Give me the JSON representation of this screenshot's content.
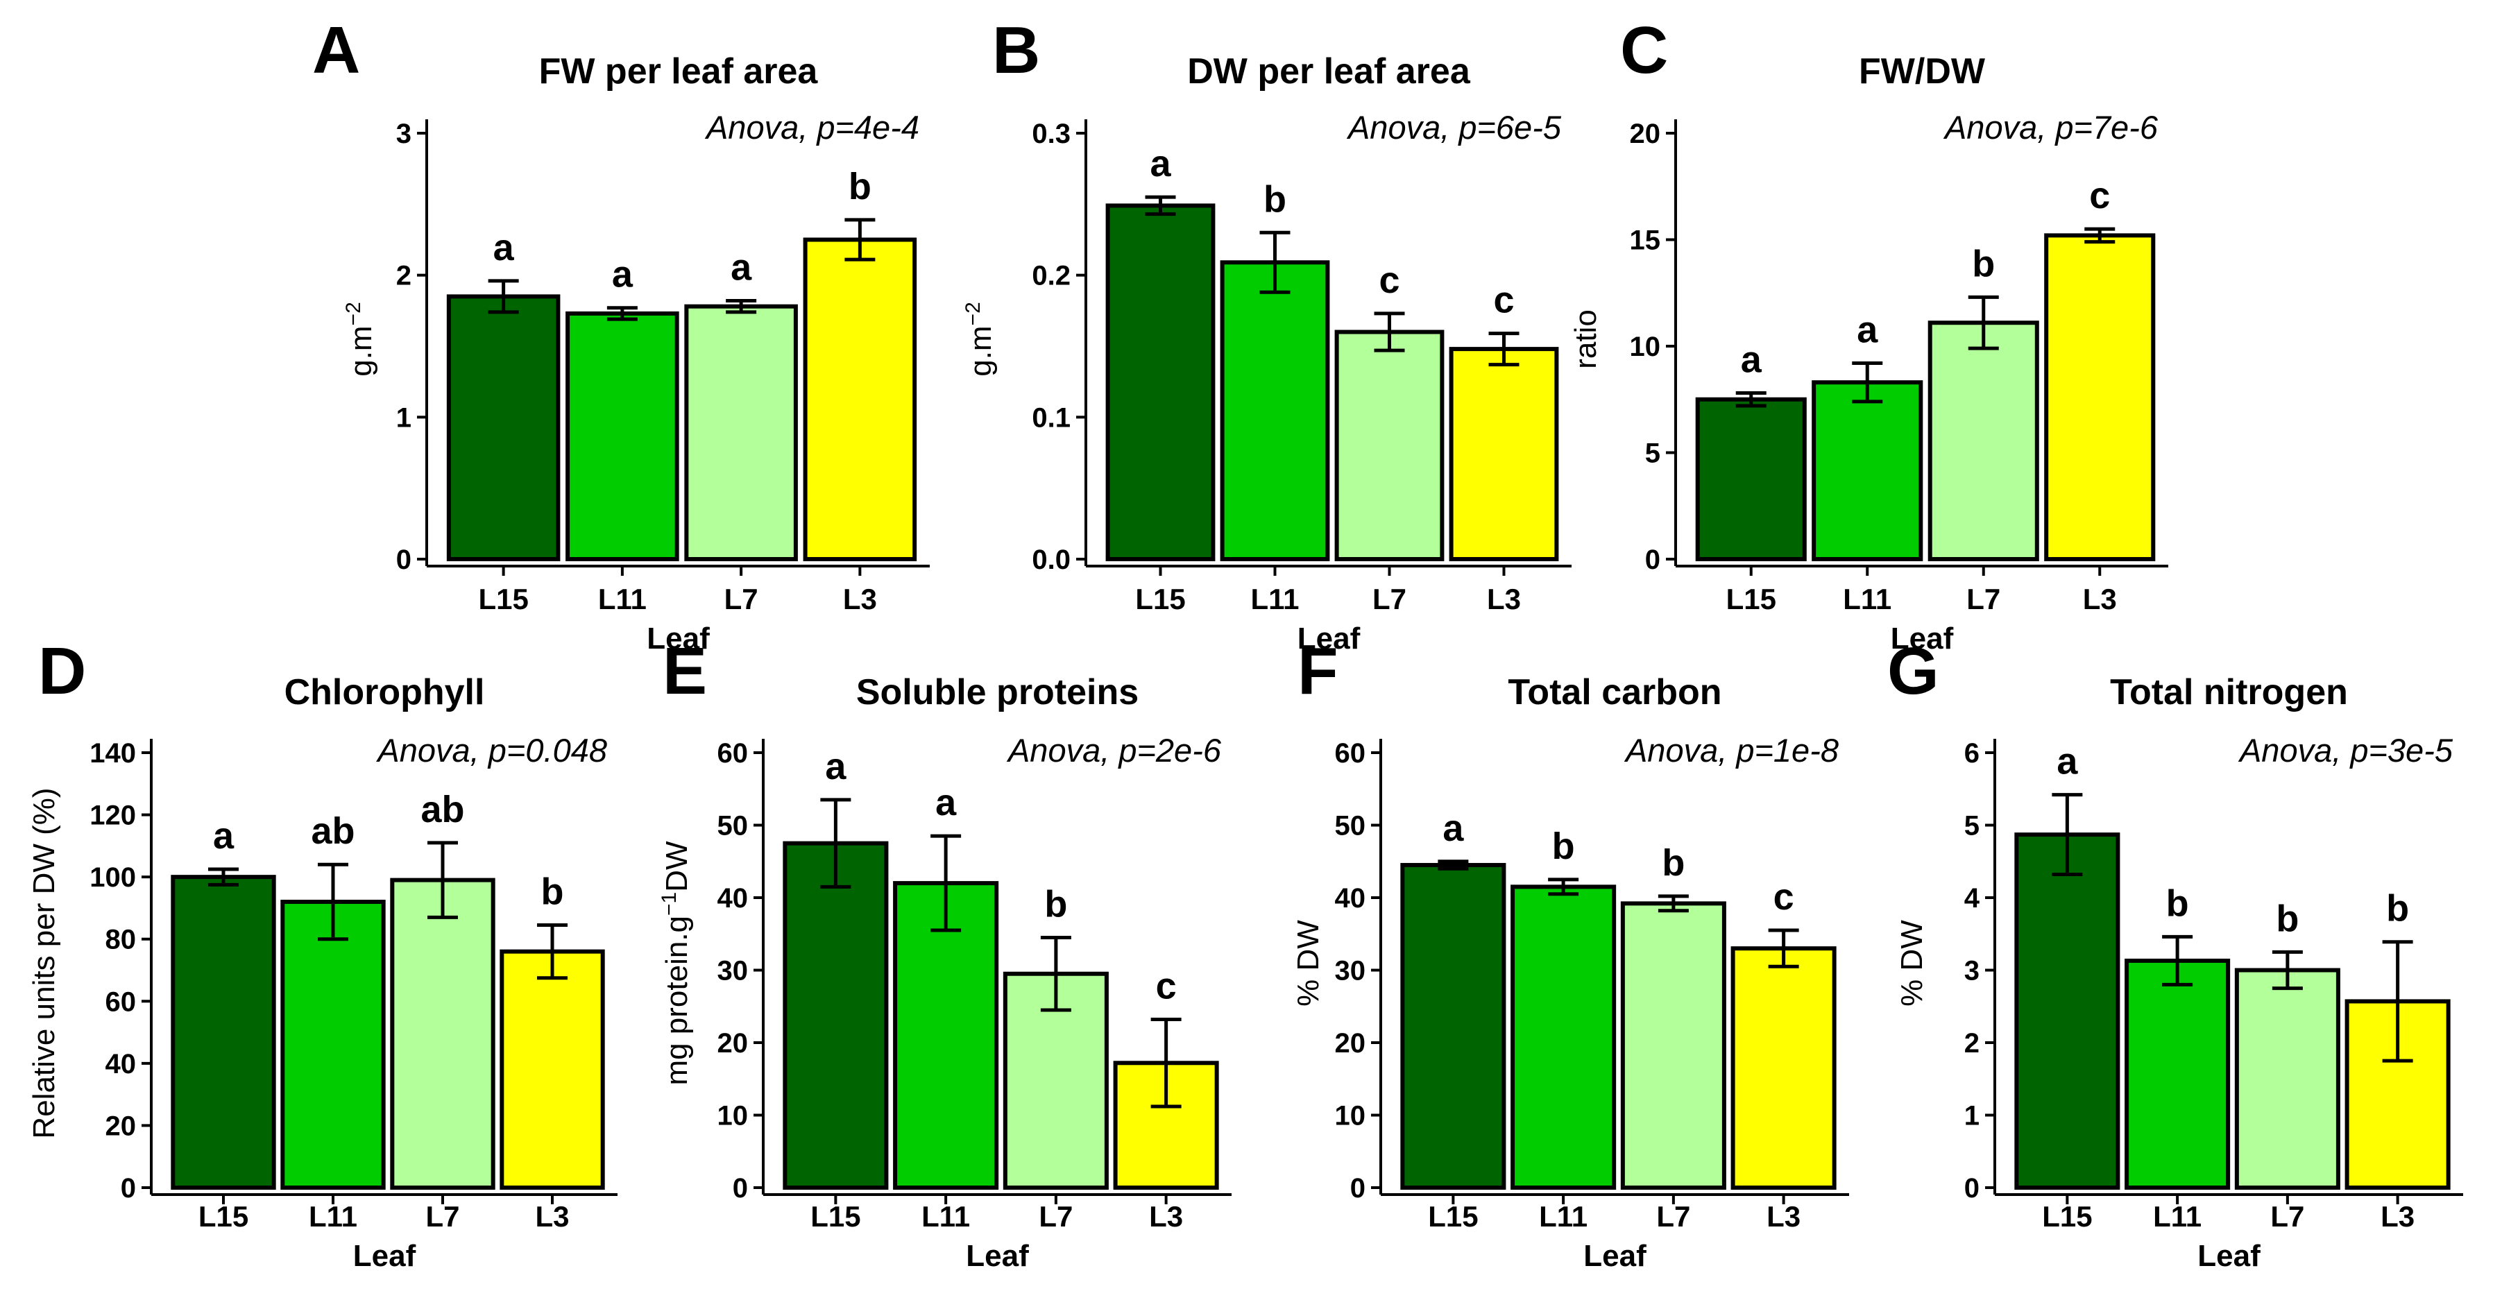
{
  "chart_data": [
    {
      "panel": "A",
      "type": "bar",
      "title": "FW per leaf area",
      "anova": "Anova, p=4e-4",
      "xlabel": "Leaf",
      "ylabel": "g.m",
      "ylabel_sup": "−2",
      "categories": [
        "L15",
        "L11",
        "L7",
        "L3"
      ],
      "values": [
        1.85,
        1.73,
        1.78,
        2.25
      ],
      "errors": [
        0.11,
        0.04,
        0.04,
        0.14
      ],
      "letters": [
        "a",
        "a",
        "a",
        "b"
      ],
      "ylim": [
        0,
        3
      ],
      "yticks": [
        0,
        1,
        2,
        3
      ],
      "ytick_labels": [
        "0",
        "1",
        "2",
        "3"
      ]
    },
    {
      "panel": "B",
      "type": "bar",
      "title": "DW per leaf area",
      "anova": "Anova, p=6e-5",
      "xlabel": "Leaf",
      "ylabel": "g.m",
      "ylabel_sup": "−2",
      "categories": [
        "L15",
        "L11",
        "L7",
        "L3"
      ],
      "values": [
        0.249,
        0.209,
        0.16,
        0.148
      ],
      "errors": [
        0.006,
        0.021,
        0.013,
        0.011
      ],
      "letters": [
        "a",
        "b",
        "c",
        "c"
      ],
      "ylim": [
        0,
        0.3
      ],
      "yticks": [
        0,
        0.1,
        0.2,
        0.3
      ],
      "ytick_labels": [
        "0.0",
        "0.1",
        "0.2",
        "0.3"
      ]
    },
    {
      "panel": "C",
      "type": "bar",
      "title": "FW/DW",
      "anova": "Anova, p=7e-6",
      "xlabel": "Leaf",
      "ylabel": "ratio",
      "ylabel_sup": "",
      "categories": [
        "L15",
        "L11",
        "L7",
        "L3"
      ],
      "values": [
        7.5,
        8.3,
        11.1,
        15.2
      ],
      "errors": [
        0.3,
        0.9,
        1.2,
        0.3
      ],
      "letters": [
        "a",
        "a",
        "b",
        "c"
      ],
      "ylim": [
        0,
        20
      ],
      "yticks": [
        0,
        5,
        10,
        15,
        20
      ],
      "ytick_labels": [
        "0",
        "5",
        "10",
        "15",
        "20"
      ]
    },
    {
      "panel": "D",
      "type": "bar",
      "title": "Chlorophyll",
      "anova": "Anova, p=0.048",
      "xlabel": "Leaf",
      "ylabel": "Relative units per DW (%)",
      "ylabel_sup": "",
      "categories": [
        "L15",
        "L11",
        "L7",
        "L3"
      ],
      "values": [
        100,
        92,
        99,
        76
      ],
      "errors": [
        2.5,
        12,
        12,
        8.5
      ],
      "letters": [
        "a",
        "ab",
        "ab",
        "b"
      ],
      "ylim": [
        0,
        140
      ],
      "yticks": [
        0,
        20,
        40,
        60,
        80,
        100,
        120,
        140
      ],
      "ytick_labels": [
        "0",
        "20",
        "40",
        "60",
        "80",
        "100",
        "120",
        "140"
      ]
    },
    {
      "panel": "E",
      "type": "bar",
      "title": "Soluble proteins",
      "anova": "Anova, p=2e-6",
      "xlabel": "Leaf",
      "ylabel": "mg protein.g",
      "ylabel_sup": "−1",
      "ylabel_suffix": "DW",
      "categories": [
        "L15",
        "L11",
        "L7",
        "L3"
      ],
      "values": [
        47.5,
        42,
        29.5,
        17.2
      ],
      "errors": [
        6,
        6.5,
        5,
        6
      ],
      "letters": [
        "a",
        "a",
        "b",
        "c"
      ],
      "ylim": [
        0,
        60
      ],
      "yticks": [
        0,
        10,
        20,
        30,
        40,
        50,
        60
      ],
      "ytick_labels": [
        "0",
        "10",
        "20",
        "30",
        "40",
        "50",
        "60"
      ]
    },
    {
      "panel": "F",
      "type": "bar",
      "title": "Total carbon",
      "anova": "Anova, p=1e-8",
      "xlabel": "Leaf",
      "ylabel": "% DW",
      "ylabel_sup": "",
      "categories": [
        "L15",
        "L11",
        "L7",
        "L3"
      ],
      "values": [
        44.5,
        41.5,
        39.2,
        33
      ],
      "errors": [
        0.5,
        1,
        1,
        2.5
      ],
      "letters": [
        "a",
        "b",
        "b",
        "c"
      ],
      "ylim": [
        0,
        60
      ],
      "yticks": [
        0,
        10,
        20,
        30,
        40,
        50,
        60
      ],
      "ytick_labels": [
        "0",
        "10",
        "20",
        "30",
        "40",
        "50",
        "60"
      ]
    },
    {
      "panel": "G",
      "type": "bar",
      "title": "Total nitrogen",
      "anova": "Anova, p=3e-5",
      "xlabel": "Leaf",
      "ylabel": "% DW",
      "ylabel_sup": "",
      "categories": [
        "L15",
        "L11",
        "L7",
        "L3"
      ],
      "values": [
        4.87,
        3.13,
        3.0,
        2.57
      ],
      "errors": [
        0.55,
        0.33,
        0.25,
        0.82
      ],
      "letters": [
        "a",
        "b",
        "b",
        "b"
      ],
      "ylim": [
        0,
        6
      ],
      "yticks": [
        0,
        1,
        2,
        3,
        4,
        5,
        6
      ],
      "ytick_labels": [
        "0",
        "1",
        "2",
        "3",
        "4",
        "5",
        "6"
      ]
    }
  ],
  "colors": {
    "bars": [
      "#006400",
      "#00cc00",
      "#b3ff99",
      "#ffff00"
    ],
    "axis": "#000000",
    "background": "#ffffff"
  }
}
